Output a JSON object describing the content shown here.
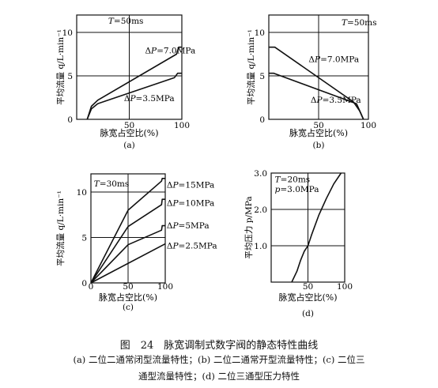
{
  "figure": {
    "caption_title": "图　24　脉宽调制式数字阀的静态特性曲线",
    "caption_line1": "(a) 二位二通常闭型流量特性；(b) 二位二通常开型流量特性；(c) 二位三",
    "caption_line2": "通型流量特性；(d) 二位三通型压力特性"
  },
  "chart_data": [
    {
      "id": "a",
      "type": "line",
      "sublabel": "(a)",
      "xlabel": "脉宽占空比(%)",
      "ylabel": "平均流量 q/L·min⁻¹",
      "xlim": [
        0,
        100
      ],
      "ylim": [
        0,
        12
      ],
      "xticks": [
        "50",
        "100"
      ],
      "yticks": [
        "0",
        "5",
        "10"
      ],
      "xtick_values": [
        50,
        100
      ],
      "ytick_values": [
        0,
        5,
        10
      ],
      "hlines": [
        5,
        10
      ],
      "vlines": [
        50
      ],
      "annotations": [
        {
          "text": "T=50ms",
          "x": 30,
          "y": 11
        }
      ],
      "series": [
        {
          "label": "ΔP=7.0MPa",
          "points": [
            [
              10,
              0
            ],
            [
              14,
              1.5
            ],
            [
              20,
              2.2
            ],
            [
              95,
              7.5
            ],
            [
              97,
              8.3
            ],
            [
              100,
              8.3
            ]
          ],
          "label_pos": [
            65,
            7.6
          ]
        },
        {
          "label": "ΔP=3.5MPa",
          "points": [
            [
              10,
              0
            ],
            [
              14,
              1.2
            ],
            [
              20,
              1.8
            ],
            [
              93,
              4.8
            ],
            [
              96,
              5.3
            ],
            [
              100,
              5.3
            ]
          ],
          "label_pos": [
            45,
            2.1
          ]
        }
      ]
    },
    {
      "id": "b",
      "type": "line",
      "sublabel": "(b)",
      "xlabel": "脉宽占空比(%)",
      "ylabel": "平均流量 q/L·min⁻¹",
      "xlim": [
        0,
        100
      ],
      "ylim": [
        0,
        12
      ],
      "xticks": [
        "50",
        "100"
      ],
      "yticks": [
        "0",
        "5",
        "10"
      ],
      "xtick_values": [
        50,
        100
      ],
      "ytick_values": [
        0,
        5,
        10
      ],
      "hlines": [
        5,
        10
      ],
      "vlines": [
        50
      ],
      "annotations": [
        {
          "text": "T=50ms",
          "x": 73,
          "y": 10.8
        }
      ],
      "series": [
        {
          "label": "ΔP=7.0MPa",
          "points": [
            [
              0,
              8.3
            ],
            [
              6,
              8.3
            ],
            [
              85,
              2
            ],
            [
              91,
              1
            ],
            [
              95,
              0
            ]
          ],
          "label_pos": [
            40,
            6.6
          ]
        },
        {
          "label": "ΔP=3.5MPa",
          "points": [
            [
              0,
              5.3
            ],
            [
              5,
              5.3
            ],
            [
              88,
              1.8
            ],
            [
              92,
              0.8
            ],
            [
              95,
              0
            ]
          ],
          "label_pos": [
            42,
            1.9
          ]
        }
      ]
    },
    {
      "id": "c",
      "type": "line",
      "sublabel": "(c)",
      "xlabel": "脉宽占空比(%)",
      "ylabel": "平均流量 q/L·min⁻¹",
      "xlim": [
        0,
        100
      ],
      "ylim": [
        0,
        12
      ],
      "xticks": [
        "0",
        "50",
        "100"
      ],
      "yticks": [
        "0",
        "5",
        "10"
      ],
      "xtick_values": [
        0,
        50,
        100
      ],
      "ytick_values": [
        0,
        5,
        10
      ],
      "hlines": [
        5,
        10
      ],
      "vlines": [
        50
      ],
      "annotations": [
        {
          "text": "T=30ms",
          "x": 4,
          "y": 10.6
        }
      ],
      "series": [
        {
          "label": "ΔP=15MPa",
          "points": [
            [
              0,
              0
            ],
            [
              50,
              8
            ],
            [
              95,
              11.2
            ],
            [
              96,
              11.5
            ],
            [
              100,
              11.5
            ]
          ],
          "label_pos": [
            102,
            10.5
          ]
        },
        {
          "label": "ΔP=10MPa",
          "points": [
            [
              0,
              0
            ],
            [
              50,
              6.2
            ],
            [
              95,
              8.6
            ],
            [
              96,
              9.2
            ],
            [
              100,
              9.2
            ]
          ],
          "label_pos": [
            102,
            8.5
          ]
        },
        {
          "label": "ΔP=5MPa",
          "points": [
            [
              0,
              0
            ],
            [
              50,
              4.2
            ],
            [
              95,
              5.8
            ],
            [
              96,
              6.3
            ],
            [
              100,
              6.3
            ]
          ],
          "label_pos": [
            102,
            6.0
          ]
        },
        {
          "label": "ΔP=2.5MPa",
          "points": [
            [
              0,
              0
            ],
            [
              100,
              4.3
            ]
          ],
          "label_pos": [
            102,
            3.8
          ]
        }
      ]
    },
    {
      "id": "d",
      "type": "line",
      "sublabel": "(d)",
      "xlabel": "脉宽占空比(%)",
      "ylabel": "平均压力 p/MPa",
      "xlim": [
        0,
        100
      ],
      "ylim": [
        0,
        3.0
      ],
      "xticks": [
        "50",
        "100"
      ],
      "yticks": [
        "1.0",
        "2.0",
        "3.0"
      ],
      "xtick_values": [
        50,
        100
      ],
      "ytick_values": [
        1,
        2,
        3
      ],
      "hlines": [
        1,
        2
      ],
      "vlines": [
        50
      ],
      "annotations": [
        {
          "text": "T=20ms",
          "x": 5,
          "y": 2.75
        },
        {
          "text": "p=3.0MPa",
          "x": 5,
          "y": 2.48
        }
      ],
      "series": [
        {
          "label": "",
          "points": [
            [
              28,
              0
            ],
            [
              35,
              0.3
            ],
            [
              40,
              0.6
            ],
            [
              45,
              0.85
            ],
            [
              50,
              1.0
            ],
            [
              55,
              1.3
            ],
            [
              65,
              1.85
            ],
            [
              75,
              2.3
            ],
            [
              85,
              2.7
            ],
            [
              95,
              3.0
            ]
          ]
        }
      ]
    }
  ]
}
